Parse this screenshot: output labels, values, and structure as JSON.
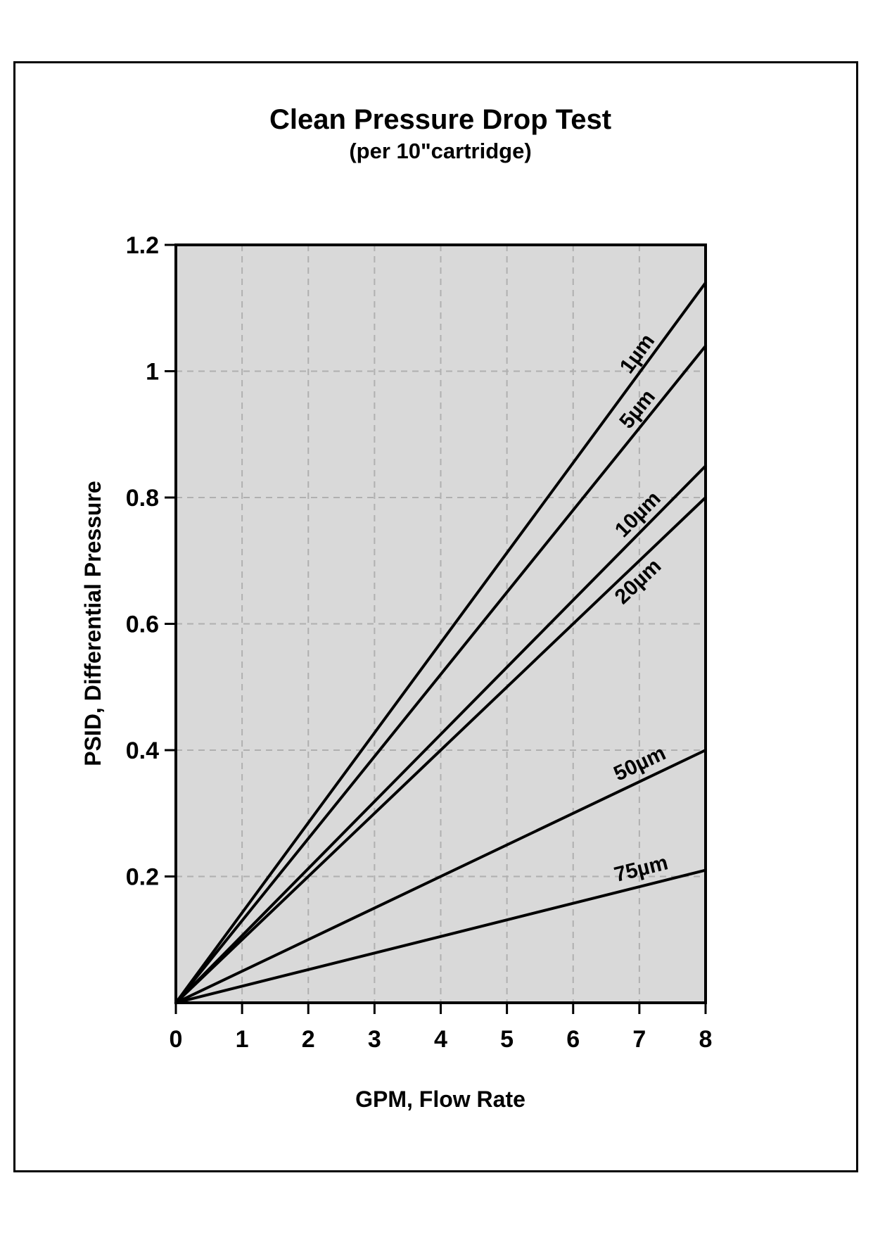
{
  "chart_data": {
    "type": "line",
    "title": "Clean Pressure Drop Test",
    "subtitle": "(per 10\"cartridge)",
    "xlabel": "GPM, Flow Rate",
    "ylabel": "PSID, Differential Pressure",
    "xlim": [
      0,
      8
    ],
    "ylim": [
      0,
      1.2
    ],
    "x_ticks": [
      0,
      1,
      2,
      3,
      4,
      5,
      6,
      7,
      8
    ],
    "y_ticks": [
      0.2,
      0.4,
      0.6,
      0.8,
      1,
      1.2
    ],
    "grid": "dashed",
    "legend_position": "inline-labels-on-lines",
    "colors": {
      "plot_bg": "#d9d9d9",
      "grid": "#b0b0b0",
      "line": "#000000",
      "text": "#000000",
      "frame": "#000000"
    },
    "series": [
      {
        "name": "1µm",
        "points": [
          [
            0,
            0
          ],
          [
            8,
            1.14
          ]
        ],
        "label_side": "above"
      },
      {
        "name": "5µm",
        "points": [
          [
            0,
            0
          ],
          [
            8,
            1.04
          ]
        ],
        "label_side": "above"
      },
      {
        "name": "10µm",
        "points": [
          [
            0,
            0
          ],
          [
            8,
            0.85
          ]
        ],
        "label_side": "above"
      },
      {
        "name": "20µm",
        "points": [
          [
            0,
            0
          ],
          [
            8,
            0.8
          ]
        ],
        "label_side": "below"
      },
      {
        "name": "50µm",
        "points": [
          [
            0,
            0
          ],
          [
            8,
            0.4
          ]
        ],
        "label_side": "above"
      },
      {
        "name": "75µm",
        "points": [
          [
            0,
            0
          ],
          [
            8,
            0.21
          ]
        ],
        "label_side": "above"
      }
    ]
  }
}
